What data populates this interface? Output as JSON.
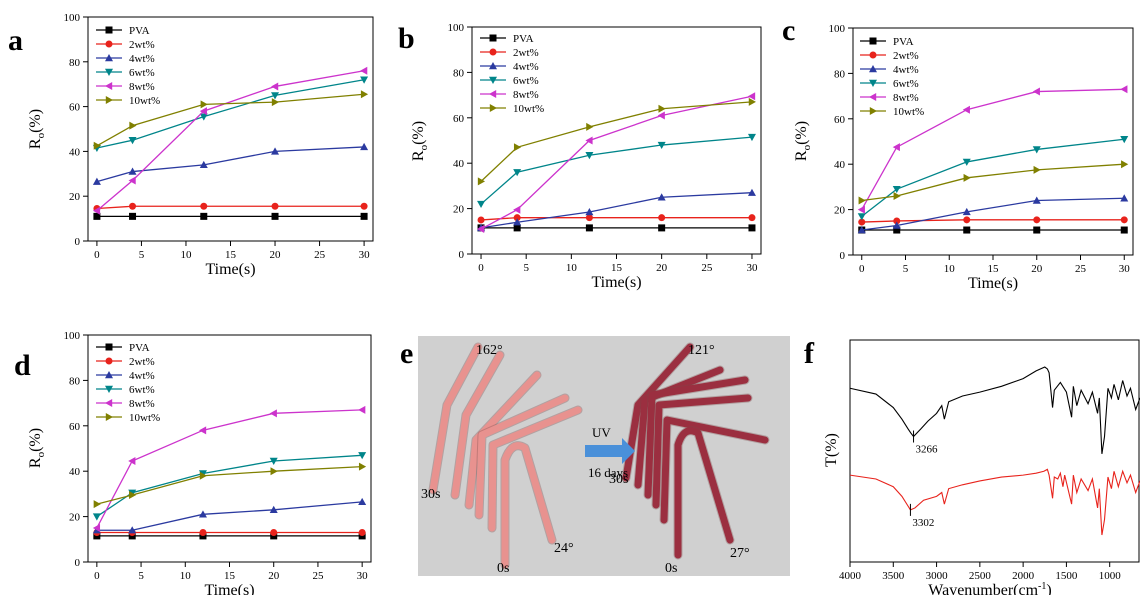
{
  "chart_data": [
    {
      "type": "line",
      "panel_label": "a",
      "xlabel": "Time(s)",
      "ylabel_main": "R",
      "ylabel_sub": "o",
      "ylabel_unit": "(%)",
      "x": [
        0,
        4,
        12,
        20,
        30
      ],
      "xlim": [
        -1,
        31
      ],
      "ylim": [
        0,
        100
      ],
      "xticks": [
        0,
        5,
        10,
        15,
        20,
        25,
        30
      ],
      "yticks": [
        0,
        20,
        40,
        60,
        80,
        100
      ],
      "series": [
        {
          "name": "PVA",
          "color": "#000000",
          "marker": "square",
          "values": [
            11,
            11,
            11,
            11,
            11
          ]
        },
        {
          "name": "2wt%",
          "color": "#e8231c",
          "marker": "circle",
          "values": [
            14.5,
            15.5,
            15.5,
            15.5,
            15.5
          ]
        },
        {
          "name": "4wt%",
          "color": "#2b3aa0",
          "marker": "triangle-up",
          "values": [
            26.5,
            31,
            34,
            40,
            42
          ]
        },
        {
          "name": "6wt%",
          "color": "#00858a",
          "marker": "triangle-down",
          "values": [
            41.5,
            45,
            55.5,
            65,
            72
          ]
        },
        {
          "name": "8wt%",
          "color": "#cc33cc",
          "marker": "triangle-left",
          "values": [
            13.5,
            27,
            58,
            69,
            76
          ]
        },
        {
          "name": "10wt%",
          "color": "#808000",
          "marker": "triangle-right",
          "values": [
            42.5,
            51.5,
            61,
            62,
            65.5
          ]
        }
      ]
    },
    {
      "type": "line",
      "panel_label": "b",
      "xlabel": "Time(s)",
      "ylabel_main": "R",
      "ylabel_sub": "o",
      "ylabel_unit": "(%)",
      "x": [
        0,
        4,
        12,
        20,
        30
      ],
      "xlim": [
        -1,
        31
      ],
      "ylim": [
        0,
        100
      ],
      "xticks": [
        0,
        5,
        10,
        15,
        20,
        25,
        30
      ],
      "yticks": [
        0,
        20,
        40,
        60,
        80,
        100
      ],
      "series": [
        {
          "name": "PVA",
          "color": "#000000",
          "marker": "square",
          "values": [
            11.5,
            11.5,
            11.5,
            11.5,
            11.5
          ]
        },
        {
          "name": "2wt%",
          "color": "#e8231c",
          "marker": "circle",
          "values": [
            15,
            16,
            16,
            16,
            16
          ]
        },
        {
          "name": "4wt%",
          "color": "#2b3aa0",
          "marker": "triangle-up",
          "values": [
            11.5,
            14,
            18.5,
            25,
            27
          ]
        },
        {
          "name": "6wt%",
          "color": "#00858a",
          "marker": "triangle-down",
          "values": [
            22,
            36,
            43.5,
            48,
            51.5
          ]
        },
        {
          "name": "8wt%",
          "color": "#cc33cc",
          "marker": "triangle-left",
          "values": [
            11,
            19.5,
            50,
            61,
            69.5
          ]
        },
        {
          "name": "10wt%",
          "color": "#808000",
          "marker": "triangle-right",
          "values": [
            32,
            47,
            56,
            64,
            67
          ]
        }
      ]
    },
    {
      "type": "line",
      "panel_label": "c",
      "xlabel": "Time(s)",
      "ylabel_main": "R",
      "ylabel_sub": "o",
      "ylabel_unit": "(%)",
      "x": [
        0,
        4,
        12,
        20,
        30
      ],
      "xlim": [
        -1,
        31
      ],
      "ylim": [
        0,
        100
      ],
      "xticks": [
        0,
        5,
        10,
        15,
        20,
        25,
        30
      ],
      "yticks": [
        0,
        20,
        40,
        60,
        80,
        100
      ],
      "series": [
        {
          "name": "PVA",
          "color": "#000000",
          "marker": "square",
          "values": [
            11,
            11,
            11,
            11,
            11
          ]
        },
        {
          "name": "2wt%",
          "color": "#e8231c",
          "marker": "circle",
          "values": [
            14.5,
            15,
            15.5,
            15.5,
            15.5
          ]
        },
        {
          "name": "4wt%",
          "color": "#2b3aa0",
          "marker": "triangle-up",
          "values": [
            11,
            13,
            19,
            24,
            25
          ]
        },
        {
          "name": "6wt%",
          "color": "#00858a",
          "marker": "triangle-down",
          "values": [
            17,
            29,
            41,
            46.5,
            51
          ]
        },
        {
          "name": "8wt%",
          "color": "#cc33cc",
          "marker": "triangle-left",
          "values": [
            20,
            47.5,
            64,
            72,
            73
          ]
        },
        {
          "name": "10wt%",
          "color": "#808000",
          "marker": "triangle-right",
          "values": [
            24,
            26,
            34,
            37.5,
            40
          ]
        }
      ]
    },
    {
      "type": "line",
      "panel_label": "d",
      "xlabel": "Time(s)",
      "ylabel_main": "R",
      "ylabel_sub": "o",
      "ylabel_unit": "(%)",
      "x": [
        0,
        4,
        12,
        20,
        30
      ],
      "xlim": [
        -1,
        31
      ],
      "ylim": [
        0,
        100
      ],
      "xticks": [
        0,
        5,
        10,
        15,
        20,
        25,
        30
      ],
      "yticks": [
        0,
        20,
        40,
        60,
        80,
        100
      ],
      "series": [
        {
          "name": "PVA",
          "color": "#000000",
          "marker": "square",
          "values": [
            11.5,
            11.5,
            11.5,
            11.5,
            11.5
          ]
        },
        {
          "name": "2wt%",
          "color": "#e8231c",
          "marker": "circle",
          "values": [
            13,
            13,
            13,
            13,
            13
          ]
        },
        {
          "name": "4wt%",
          "color": "#2b3aa0",
          "marker": "triangle-up",
          "values": [
            14,
            14,
            21,
            23,
            26.5
          ]
        },
        {
          "name": "6wt%",
          "color": "#00858a",
          "marker": "triangle-down",
          "values": [
            20,
            30.5,
            39,
            44.5,
            47
          ]
        },
        {
          "name": "8wt%",
          "color": "#cc33cc",
          "marker": "triangle-left",
          "values": [
            15,
            44.5,
            58,
            65.5,
            67
          ]
        },
        {
          "name": "10wt%",
          "color": "#808000",
          "marker": "triangle-right",
          "values": [
            25.5,
            29.5,
            38,
            40,
            42
          ]
        }
      ]
    },
    {
      "type": "line",
      "panel_label": "f",
      "xlabel": "Wavenumber(cm",
      "xlabel_sup": "-1",
      "xlabel_end": ")",
      "ylabel": "T(%)",
      "xlim": [
        4000,
        650
      ],
      "xticks": [
        4000,
        3500,
        3000,
        2500,
        2000,
        1500,
        1000
      ],
      "annotations": [
        {
          "text": "3266",
          "x": 3266
        },
        {
          "text": "3302",
          "x": 3302
        }
      ],
      "series": [
        {
          "name": "",
          "color": "#000000",
          "points": [
            [
              4000,
              60
            ],
            [
              3700,
              57
            ],
            [
              3500,
              50
            ],
            [
              3400,
              44
            ],
            [
              3330,
              39
            ],
            [
              3300,
              37
            ],
            [
              3266,
              35
            ],
            [
              3180,
              39
            ],
            [
              3100,
              43
            ],
            [
              3000,
              47
            ],
            [
              2940,
              51
            ],
            [
              2910,
              44
            ],
            [
              2860,
              53
            ],
            [
              2700,
              56
            ],
            [
              2500,
              58
            ],
            [
              2250,
              61
            ],
            [
              2000,
              65
            ],
            [
              1850,
              69
            ],
            [
              1750,
              71
            ],
            [
              1720,
              70
            ],
            [
              1700,
              68
            ],
            [
              1660,
              50
            ],
            [
              1640,
              59
            ],
            [
              1570,
              63
            ],
            [
              1500,
              58
            ],
            [
              1440,
              45
            ],
            [
              1420,
              61
            ],
            [
              1380,
              51
            ],
            [
              1330,
              59
            ],
            [
              1250,
              52
            ],
            [
              1200,
              58
            ],
            [
              1140,
              47
            ],
            [
              1120,
              55
            ],
            [
              1090,
              26
            ],
            [
              1060,
              35
            ],
            [
              1020,
              60
            ],
            [
              980,
              55
            ],
            [
              950,
              62
            ],
            [
              900,
              54
            ],
            [
              850,
              64
            ],
            [
              800,
              56
            ],
            [
              760,
              60
            ],
            [
              700,
              49
            ],
            [
              650,
              55
            ]
          ]
        },
        {
          "name": "",
          "color": "#e8231c",
          "points": [
            [
              4000,
              15
            ],
            [
              3700,
              13
            ],
            [
              3500,
              9
            ],
            [
              3400,
              4
            ],
            [
              3330,
              -1
            ],
            [
              3302,
              -3
            ],
            [
              3250,
              -2
            ],
            [
              3150,
              2
            ],
            [
              3000,
              4
            ],
            [
              2940,
              6
            ],
            [
              2910,
              0
            ],
            [
              2860,
              8
            ],
            [
              2700,
              10
            ],
            [
              2500,
              12
            ],
            [
              2250,
              14
            ],
            [
              2000,
              15
            ],
            [
              1850,
              16
            ],
            [
              1760,
              17
            ],
            [
              1720,
              18
            ],
            [
              1700,
              15
            ],
            [
              1660,
              3
            ],
            [
              1640,
              14
            ],
            [
              1600,
              13
            ],
            [
              1570,
              16
            ],
            [
              1540,
              9
            ],
            [
              1520,
              15
            ],
            [
              1440,
              0
            ],
            [
              1420,
              15
            ],
            [
              1380,
              6
            ],
            [
              1330,
              13
            ],
            [
              1250,
              7
            ],
            [
              1200,
              13
            ],
            [
              1140,
              -2
            ],
            [
              1120,
              8
            ],
            [
              1090,
              -16
            ],
            [
              1060,
              -8
            ],
            [
              1020,
              14
            ],
            [
              980,
              8
            ],
            [
              950,
              17
            ],
            [
              900,
              9
            ],
            [
              850,
              17
            ],
            [
              800,
              11
            ],
            [
              760,
              15
            ],
            [
              700,
              6
            ],
            [
              650,
              12
            ]
          ]
        }
      ]
    }
  ],
  "panels": {
    "a": {
      "label": "a"
    },
    "b": {
      "label": "b"
    },
    "c": {
      "label": "c"
    },
    "d": {
      "label": "d"
    },
    "e": {
      "label": "e",
      "angle_left_top": "162°",
      "angle_left_bottom": "24°",
      "angle_right_top": "121°",
      "angle_right_bottom": "27°",
      "time_left_start": "30s",
      "time_left_end": "0s",
      "time_right_start": "30s",
      "time_right_end": "0s",
      "arrow_label_top": "UV",
      "arrow_label_bottom": "16 days",
      "colors": {
        "bg": "#d0d0d0",
        "rod_left": "#e8928f",
        "rod_right": "#9b2f40",
        "arrow": "#4a90d9"
      }
    },
    "f": {
      "label": "f"
    }
  }
}
